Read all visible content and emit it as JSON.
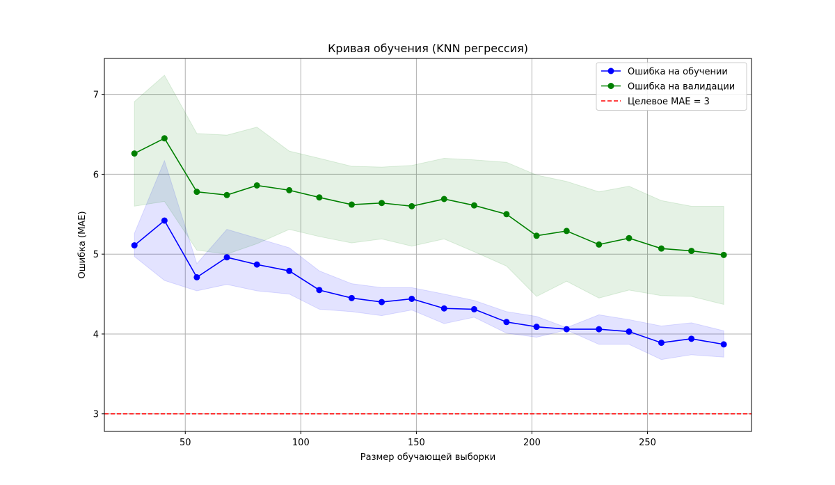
{
  "chart_data": {
    "type": "line",
    "title": "Кривая обучения (KNN регрессия)",
    "xlabel": "Размер обучающей выборки",
    "ylabel": "Ошибка (MAE)",
    "xlim": [
      15,
      295
    ],
    "ylim": [
      2.78,
      7.45
    ],
    "xticks": [
      50,
      100,
      150,
      200,
      250
    ],
    "yticks": [
      3,
      4,
      5,
      6,
      7
    ],
    "grid": true,
    "legend_position": "top-right",
    "x": [
      28,
      41,
      55,
      68,
      81,
      95,
      108,
      122,
      135,
      148,
      162,
      175,
      189,
      202,
      215,
      229,
      242,
      256,
      269,
      283
    ],
    "series": [
      {
        "name": "Ошибка на обучении",
        "color": "#0000ff",
        "marker": "circle",
        "values": [
          5.11,
          5.42,
          4.71,
          4.96,
          4.87,
          4.79,
          4.55,
          4.45,
          4.4,
          4.44,
          4.32,
          4.31,
          4.15,
          4.09,
          4.06,
          4.06,
          4.03,
          3.89,
          3.94,
          3.87
        ],
        "band_lower": [
          4.97,
          4.67,
          4.54,
          4.62,
          4.54,
          4.5,
          4.31,
          4.28,
          4.23,
          4.3,
          4.13,
          4.21,
          4.01,
          3.96,
          4.05,
          3.87,
          3.87,
          3.68,
          3.74,
          3.71
        ],
        "band_upper": [
          5.26,
          6.17,
          4.88,
          5.31,
          5.2,
          5.08,
          4.79,
          4.63,
          4.58,
          4.58,
          4.5,
          4.42,
          4.28,
          4.22,
          4.08,
          4.24,
          4.18,
          4.1,
          4.14,
          4.04
        ],
        "band_color": "#0000ff"
      },
      {
        "name": "Ошибка на валидации",
        "color": "#008000",
        "marker": "circle",
        "values": [
          6.26,
          6.45,
          5.78,
          5.74,
          5.86,
          5.8,
          5.71,
          5.62,
          5.64,
          5.6,
          5.69,
          5.61,
          5.5,
          5.23,
          5.29,
          5.12,
          5.2,
          5.07,
          5.04,
          4.99
        ],
        "band_lower": [
          5.6,
          5.66,
          5.05,
          5.0,
          5.13,
          5.31,
          5.22,
          5.14,
          5.19,
          5.1,
          5.19,
          5.03,
          4.85,
          4.47,
          4.66,
          4.45,
          4.55,
          4.48,
          4.47,
          4.37
        ],
        "band_upper": [
          6.91,
          7.24,
          6.51,
          6.49,
          6.59,
          6.29,
          6.2,
          6.1,
          6.09,
          6.11,
          6.2,
          6.18,
          6.15,
          5.99,
          5.91,
          5.78,
          5.85,
          5.67,
          5.6,
          5.6
        ],
        "band_color": "#008000"
      }
    ],
    "reference_lines": [
      {
        "name": "Целевое MAE = 3",
        "y": 3,
        "color": "#ff0000",
        "style": "dashed"
      }
    ]
  }
}
